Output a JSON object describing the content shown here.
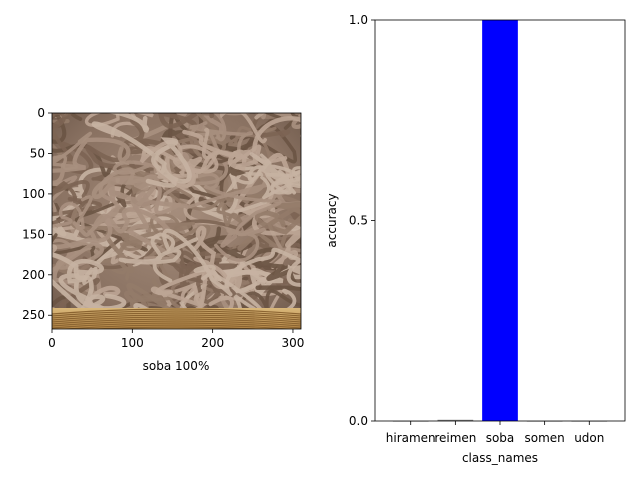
{
  "image_panel": {
    "caption": "soba 100%",
    "caption_color": "#0000cc",
    "xlim": [
      0,
      310
    ],
    "ylim": [
      0,
      267
    ],
    "x_ticks": [
      "0",
      "100",
      "200",
      "300"
    ],
    "y_ticks": [
      "0",
      "50",
      "100",
      "150",
      "200",
      "250"
    ],
    "subject": "soba noodles on a bamboo basket"
  },
  "chart_data": {
    "type": "bar",
    "categories": [
      "hiramen",
      "reimen",
      "soba",
      "somen",
      "udon"
    ],
    "values": [
      0.0,
      0.003,
      1.0,
      0.0,
      0.0
    ],
    "xlabel": "class_names",
    "ylabel": "accuracy",
    "ylim": [
      0,
      1
    ],
    "y_ticks": [
      "0.0",
      "0.5",
      "1.0"
    ],
    "highlight_category": "soba",
    "highlight_color": "#0000ff",
    "bar_color": "#808080",
    "grid": false,
    "legend": "none"
  }
}
